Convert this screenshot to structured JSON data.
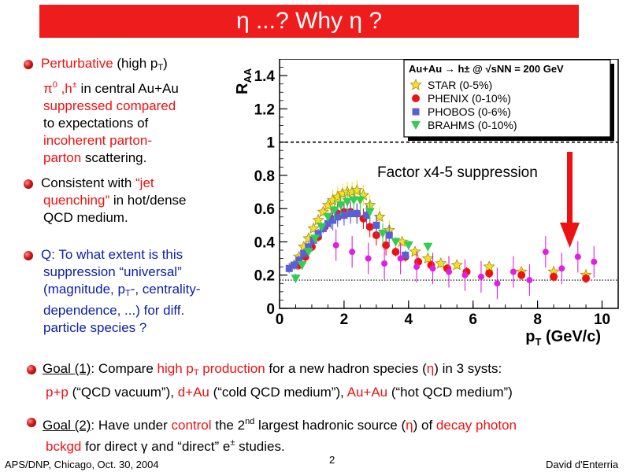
{
  "slide": {
    "title": "η ...?   Why η ?",
    "footer_left": "APS/DNP, Chicago, Oct. 30, 2004",
    "page_number": "2",
    "footer_right": "David d'Enterria",
    "colors": {
      "title_bg": "#ee1c1c",
      "emphasis_red": "#ee1111",
      "question_blue": "#0b1fa8"
    }
  },
  "bullets": {
    "b1": {
      "perturbative": "Perturbative",
      "high": " (high p",
      "t_sub": "T",
      "close": ")",
      "line2_a": "π",
      "line2_sup": "0",
      "line2_b": " ,h",
      "line2_sup2": "±",
      "line2_c": " in central Au+Au",
      "line3": "suppressed compared",
      "line4": "to expectations of",
      "line5": "incoherent parton-",
      "line6_red": "parton",
      "line6_black": " scattering."
    },
    "b2": {
      "a": "Consistent with ",
      "jet": "“jet",
      "quenching": "quenching”",
      "b": " in hot/dense",
      "line3": "QCD medium."
    },
    "b3": {
      "line1": "Q: To what extent is this",
      "line2": "suppression “universal”",
      "line3_a": "(magnitude, p",
      "line3_sub": "T",
      "line3_b": "-, centrality-",
      "line4": "dependence, ...) for diff.",
      "line5": "particle species ?"
    },
    "goal1": {
      "label": "Goal (1)",
      "a": ": Compare ",
      "high_pt": "high p",
      "pt_sub": "T",
      "production": " production",
      "b": " for a new hadron species (",
      "eta": "η",
      "c": ") in 3 systs:",
      "pp": "p+p",
      "pp_desc": " (“QCD vacuum”), ",
      "dau": "d+Au",
      "dau_desc": " (“cold QCD medium”), ",
      "auau": "Au+Au",
      "auau_desc": " (“hot QCD medium”)"
    },
    "goal2": {
      "label": "Goal (2)",
      "a": ": Have under ",
      "control": "control",
      "b": " the 2",
      "nd": "nd",
      "c": " largest hadronic source (",
      "eta": "η",
      "d": ") of ",
      "decay": "decay photon",
      "bckgd": "bckgd",
      "e": " for direct ",
      "gamma": "γ",
      "f": " and “direct” e",
      "epm": "±",
      "g": " studies."
    }
  },
  "chart_data": {
    "type": "scatter",
    "xlabel": "p",
    "xlabel_sub": "T",
    "xlabel_unit": " (GeV/c)",
    "ylabel": "R",
    "ylabel_sub": "AA",
    "xlim": [
      0,
      10.5
    ],
    "ylim": [
      0,
      1.5
    ],
    "xticks": [
      "0",
      "2",
      "4",
      "6",
      "8",
      "10"
    ],
    "yticks": [
      "0",
      "0.2",
      "0.4",
      "0.6",
      "0.8",
      "1",
      "1.2",
      "1.4"
    ],
    "legend_title": "Au+Au → h± @ √sNN = 200 GeV",
    "legend_position": "top-right",
    "annotation": "Factor x4-5 suppression",
    "arrow_color": "#ee1111",
    "reference_lines": {
      "unity": 1.0,
      "dotted_low": 0.17
    },
    "series": [
      {
        "name": "STAR (0-5%)",
        "marker": "star",
        "color": "#f0e030",
        "x": [
          0.45,
          0.6,
          0.75,
          0.9,
          1.05,
          1.2,
          1.35,
          1.5,
          1.65,
          1.8,
          1.95,
          2.1,
          2.25,
          2.4,
          2.6,
          2.8,
          3.1,
          3.4,
          3.8,
          4.2,
          4.6,
          5.0,
          5.5,
          6.5,
          7.5,
          8.5,
          9.5
        ],
        "y": [
          0.26,
          0.31,
          0.37,
          0.42,
          0.48,
          0.53,
          0.58,
          0.62,
          0.65,
          0.67,
          0.69,
          0.7,
          0.7,
          0.71,
          0.68,
          0.62,
          0.55,
          0.47,
          0.4,
          0.34,
          0.3,
          0.27,
          0.26,
          0.25,
          0.22,
          0.22,
          0.2
        ]
      },
      {
        "name": "PHENIX (0-10%)",
        "marker": "circle",
        "color": "#ee1111",
        "x": [
          0.6,
          0.8,
          1.0,
          1.2,
          1.4,
          1.6,
          1.8,
          2.0,
          2.2,
          2.4,
          2.6,
          2.8,
          3.0,
          3.3,
          3.6,
          3.9,
          4.3,
          4.7,
          5.2,
          5.8,
          6.5,
          7.5,
          8.5,
          9.5
        ],
        "y": [
          0.26,
          0.31,
          0.37,
          0.43,
          0.49,
          0.54,
          0.57,
          0.58,
          0.58,
          0.57,
          0.54,
          0.49,
          0.44,
          0.38,
          0.34,
          0.31,
          0.28,
          0.26,
          0.24,
          0.22,
          0.21,
          0.2,
          0.19,
          0.18
        ]
      },
      {
        "name": "PHOBOS (0-6%)",
        "marker": "square",
        "color": "#5b5fd6",
        "x": [
          0.3,
          0.45,
          0.6,
          0.75,
          0.9,
          1.05,
          1.2,
          1.35,
          1.5,
          1.65,
          1.8,
          2.0,
          2.2,
          2.4,
          2.7,
          3.0,
          3.4,
          3.9
        ],
        "y": [
          0.24,
          0.26,
          0.29,
          0.33,
          0.37,
          0.41,
          0.45,
          0.48,
          0.51,
          0.53,
          0.55,
          0.56,
          0.57,
          0.57,
          0.56,
          0.5,
          0.44,
          0.32
        ]
      },
      {
        "name": "BRAHMS (0-10%)",
        "marker": "triangle-down",
        "color": "#33cc55",
        "x": [
          0.5,
          0.7,
          0.9,
          1.1,
          1.3,
          1.5,
          1.7,
          1.9,
          2.1,
          2.3,
          2.5,
          2.8,
          3.2,
          3.6,
          4.0,
          4.6
        ],
        "y": [
          0.18,
          0.26,
          0.34,
          0.42,
          0.49,
          0.55,
          0.59,
          0.62,
          0.64,
          0.65,
          0.65,
          0.58,
          0.45,
          0.4,
          0.38,
          0.37
        ]
      },
      {
        "name": "",
        "marker": "circle-small",
        "color": "#e020e0",
        "x": [
          1.75,
          2.25,
          2.75,
          3.25,
          3.75,
          4.25,
          4.75,
          5.25,
          5.75,
          6.25,
          6.75,
          7.25,
          7.75,
          8.25,
          8.75,
          9.25,
          9.75
        ],
        "y": [
          0.38,
          0.34,
          0.3,
          0.27,
          0.3,
          0.25,
          0.24,
          0.22,
          0.2,
          0.19,
          0.15,
          0.22,
          0.17,
          0.34,
          0.24,
          0.31,
          0.28
        ]
      }
    ]
  }
}
